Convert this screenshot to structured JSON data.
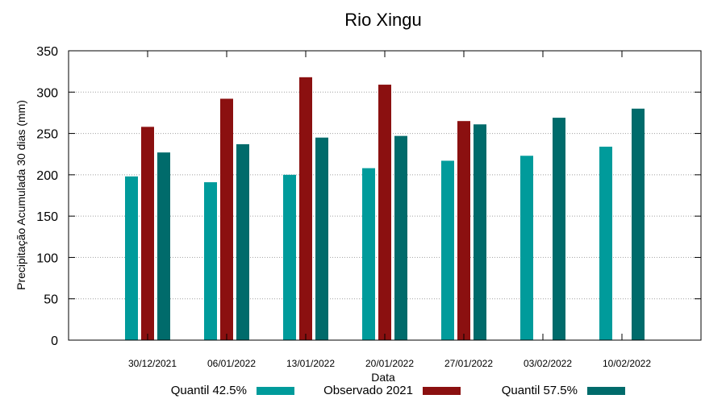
{
  "chart_data": {
    "type": "bar",
    "title": "Rio Xingu",
    "xlabel": "Data",
    "ylabel": "Precipitação Acumulada 30 dias (mm)",
    "ylim": [
      0,
      350
    ],
    "yticks": [
      0,
      50,
      100,
      150,
      200,
      250,
      300,
      350
    ],
    "grid": true,
    "legend_position": "bottom",
    "categories": [
      "30/12/2021",
      "06/01/2022",
      "13/01/2022",
      "20/01/2022",
      "27/01/2022",
      "03/02/2022",
      "10/02/2022"
    ],
    "series": [
      {
        "name": "Quantil 42.5%",
        "color": "#009b9b",
        "values": [
          198,
          191,
          200,
          208,
          217,
          223,
          234
        ]
      },
      {
        "name": "Observado 2021",
        "color": "#8b1010",
        "values": [
          258,
          292,
          318,
          309,
          265,
          null,
          null
        ]
      },
      {
        "name": "Quantil 57.5%",
        "color": "#006b6b",
        "values": [
          227,
          237,
          245,
          247,
          261,
          269,
          280
        ]
      }
    ]
  }
}
